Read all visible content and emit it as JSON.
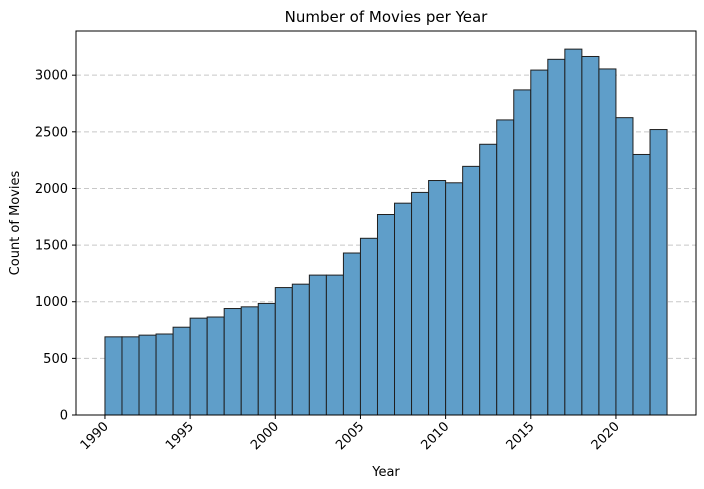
{
  "chart_data": {
    "type": "bar",
    "title": "Number of Movies per Year",
    "xlabel": "Year",
    "ylabel": "Count of Movies",
    "bin_edges": [
      1990,
      1991,
      1992,
      1993,
      1994,
      1995,
      1996,
      1997,
      1998,
      1999,
      2000,
      2001,
      2002,
      2003,
      2004,
      2005,
      2006,
      2007,
      2008,
      2009,
      2010,
      2011,
      2012,
      2013,
      2014,
      2015,
      2016,
      2017,
      2018,
      2019,
      2020,
      2021,
      2022,
      2023
    ],
    "values": [
      690,
      690,
      705,
      715,
      775,
      855,
      865,
      940,
      955,
      985,
      1125,
      1155,
      1235,
      1235,
      1430,
      1560,
      1770,
      1870,
      1965,
      2070,
      2050,
      2195,
      2390,
      2605,
      2870,
      3045,
      3140,
      3230,
      3165,
      3055,
      2625,
      2300,
      2520
    ],
    "xlim": [
      1988.35,
      1994.65
    ],
    "ylim": [
      0,
      3390
    ],
    "x_ticks": [
      "1990",
      "1995",
      "2000",
      "2005",
      "2010",
      "2015",
      "2020"
    ],
    "y_ticks": [
      "0",
      "500",
      "1000",
      "1500",
      "2000",
      "2500",
      "3000"
    ],
    "grid": "y-dashed",
    "bar_color": "#5f9ec9",
    "edge_color": "#1f1f1f"
  }
}
